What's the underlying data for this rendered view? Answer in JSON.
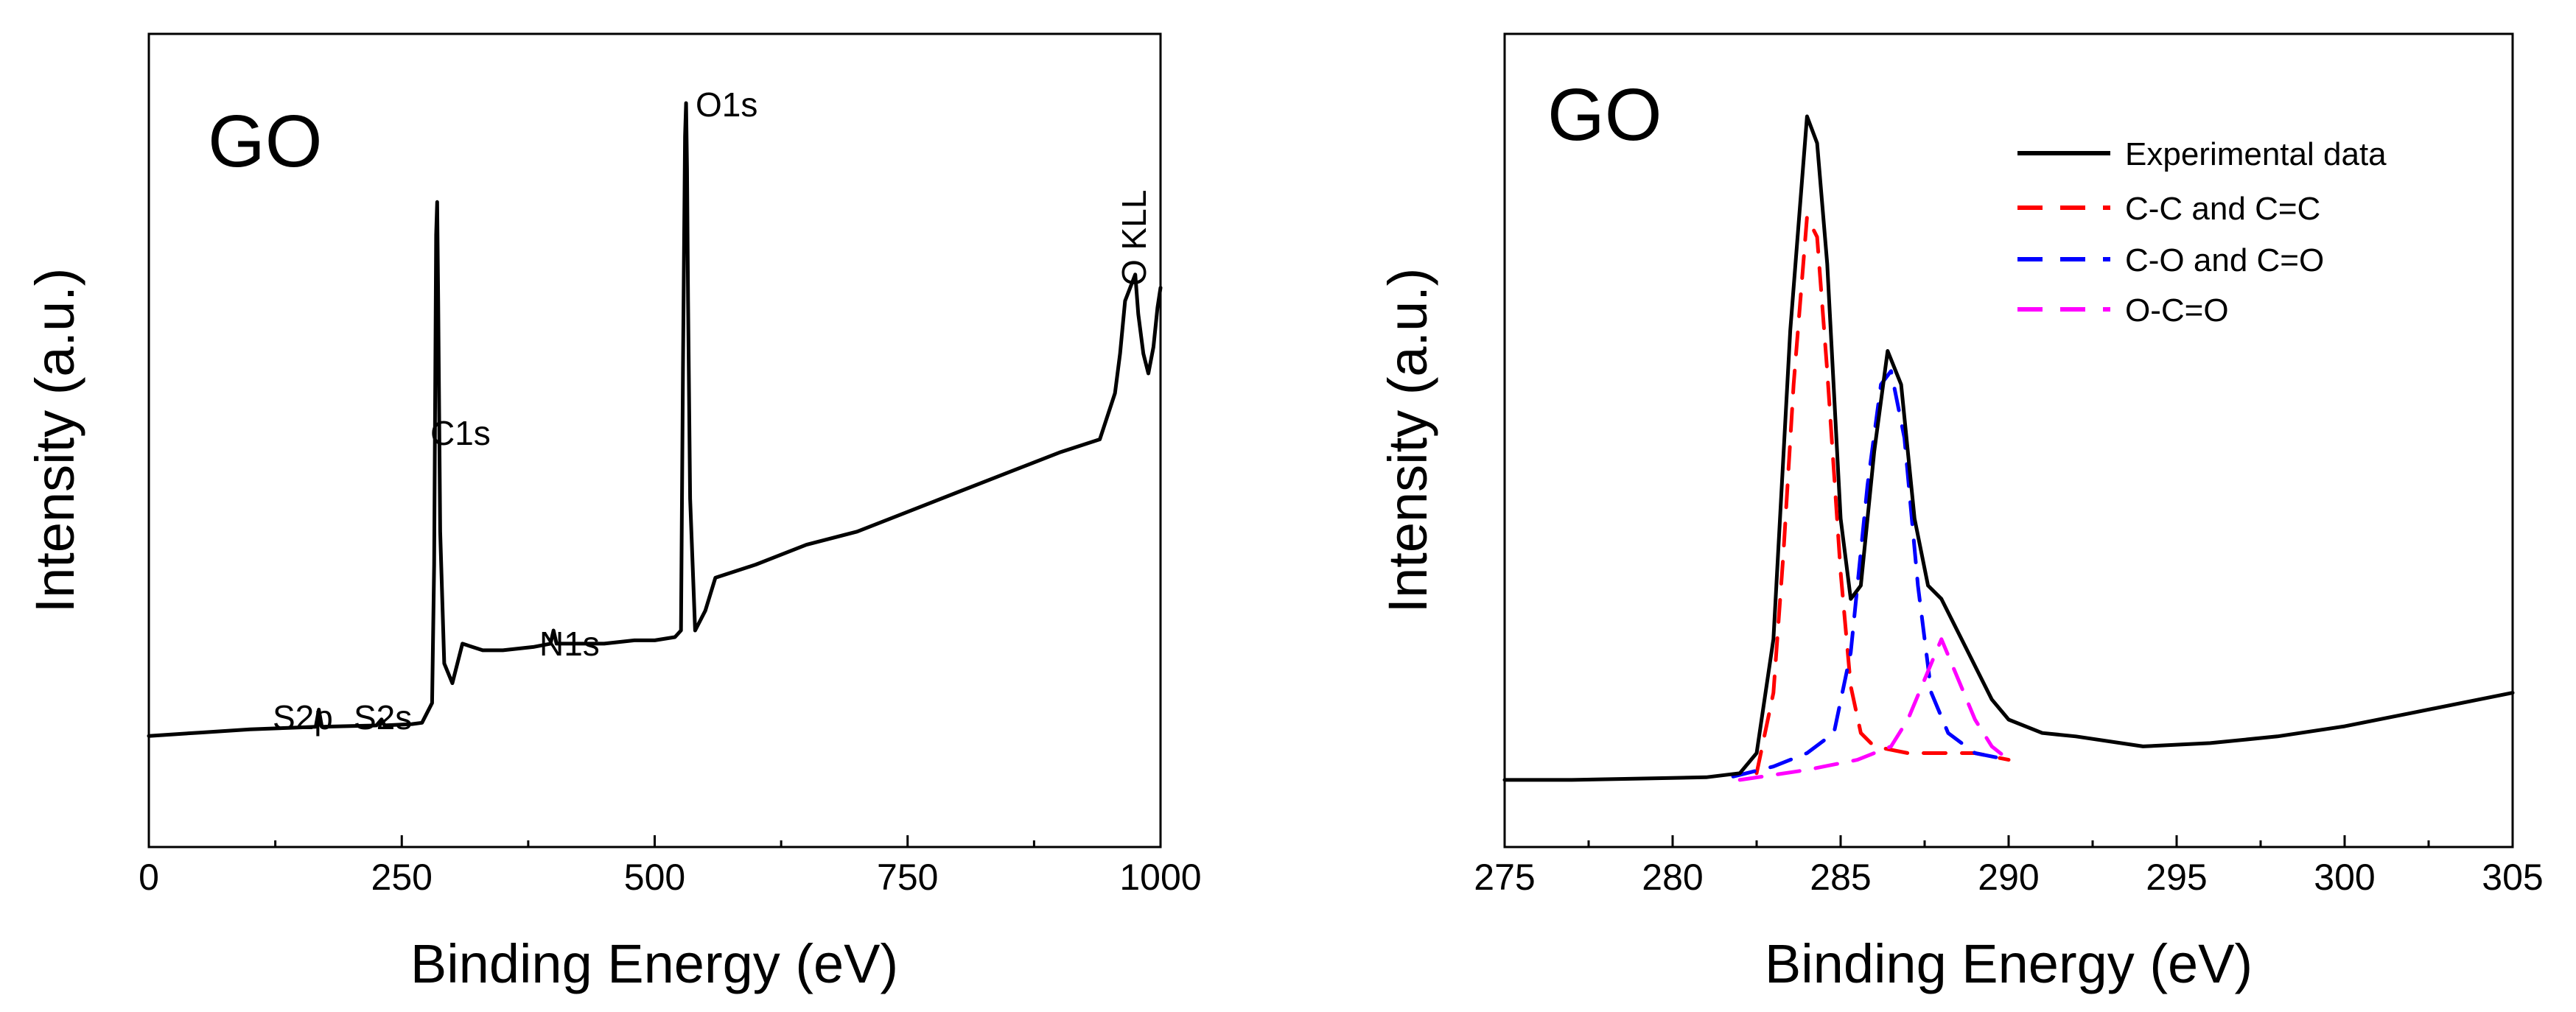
{
  "chart_data": [
    {
      "type": "line",
      "panel_label": "GO",
      "xlabel": "Binding Energy (eV)",
      "ylabel": "Intensity (a.u.)",
      "xlim": [
        0,
        1000
      ],
      "x_ticks": [
        0,
        250,
        500,
        750,
        1000
      ],
      "y_ticks_shown": false,
      "grid": false,
      "y_units": "relative (0-100)",
      "series": [
        {
          "color": "#000000",
          "x": [
            0,
            50,
            100,
            150,
            165,
            168,
            171,
            200,
            225,
            230,
            233,
            260,
            270,
            280,
            282,
            284,
            285,
            286,
            288,
            292,
            300,
            310,
            330,
            350,
            380,
            397,
            400,
            403,
            420,
            450,
            480,
            500,
            520,
            526,
            528,
            530,
            531,
            532,
            533,
            535,
            540,
            550,
            560,
            600,
            650,
            700,
            750,
            800,
            850,
            900,
            940,
            955,
            960,
            965,
            970,
            975,
            978,
            983,
            988,
            993,
            997,
            1000
          ],
          "y": [
            4,
            4.5,
            5,
            5.3,
            5.4,
            8,
            5.4,
            5.5,
            5.6,
            6.5,
            5.6,
            5.8,
            6,
            9,
            30,
            80,
            85,
            70,
            35,
            15,
            12,
            18,
            17,
            17,
            17.5,
            18,
            20,
            18,
            18,
            18,
            18.5,
            18.5,
            19,
            20,
            60,
            95,
            100,
            90,
            70,
            40,
            20,
            23,
            28,
            30,
            33,
            35,
            38,
            41,
            44,
            47,
            49,
            56,
            62,
            70,
            72,
            74,
            68,
            62,
            59,
            63,
            69,
            72
          ]
        }
      ],
      "annotations": [
        "S2p",
        "S2s",
        "C1s",
        "N1s",
        "O1s",
        "O KLL"
      ]
    },
    {
      "type": "line",
      "panel_label": "GO",
      "xlabel": "Binding Energy (eV)",
      "ylabel": "Intensity (a.u.)",
      "xlim": [
        275,
        305
      ],
      "x_ticks": [
        275,
        280,
        285,
        290,
        295,
        300,
        305
      ],
      "y_ticks_shown": false,
      "grid": false,
      "y_units": "relative (0-100)",
      "legend_position": "top-right",
      "series": [
        {
          "name": "Experimental data",
          "color": "#000000",
          "style": "solid",
          "x": [
            275,
            277,
            279,
            281,
            282,
            282.5,
            283,
            283.5,
            284,
            284.3,
            284.6,
            285,
            285.3,
            285.6,
            286,
            286.4,
            286.8,
            287.2,
            287.6,
            288,
            288.5,
            289,
            289.5,
            290,
            291,
            292,
            294,
            296,
            298,
            300,
            302,
            304,
            305
          ],
          "y": [
            1,
            1,
            1.2,
            1.4,
            2,
            5,
            22,
            68,
            100,
            96,
            78,
            40,
            28,
            30,
            50,
            65,
            60,
            40,
            30,
            28,
            23,
            18,
            13,
            10,
            8,
            7.5,
            6,
            6.5,
            7.5,
            9,
            11,
            13,
            14
          ]
        },
        {
          "name": "C-C and C=C",
          "color": "#ff0000",
          "style": "dashed",
          "x": [
            282.5,
            283,
            283.3,
            283.6,
            284,
            284.3,
            284.6,
            285,
            285.3,
            285.6,
            286,
            287,
            288,
            289,
            290
          ],
          "y": [
            2,
            14,
            35,
            60,
            85,
            82,
            62,
            32,
            15,
            8,
            6,
            5,
            5,
            5,
            4
          ]
        },
        {
          "name": "C-O and C=O",
          "color": "#0000ff",
          "style": "dashed",
          "x": [
            281.8,
            283,
            284,
            284.8,
            285.3,
            285.8,
            286.2,
            286.5,
            286.9,
            287.3,
            287.7,
            288.2,
            289,
            290
          ],
          "y": [
            1.5,
            3,
            5,
            8,
            20,
            45,
            60,
            62,
            52,
            30,
            14,
            8,
            5,
            4
          ]
        },
        {
          "name": "O-C=O",
          "color": "#ff00ff",
          "style": "dashed",
          "x": [
            282,
            284,
            285.5,
            286.5,
            287,
            287.5,
            288,
            288.5,
            289,
            289.5,
            290
          ],
          "y": [
            1,
            2.5,
            4,
            6,
            10,
            16,
            22,
            16,
            10,
            6,
            4
          ]
        }
      ]
    }
  ],
  "panels": [
    {
      "title": "GO",
      "xlabel": "Binding Energy (eV)",
      "ylabel": "Intensity (a.u.)",
      "tick_labels": [
        "0",
        "250",
        "500",
        "750",
        "1000"
      ],
      "peak_labels": [
        "S2p",
        "S2s",
        "C1s",
        "N1s",
        "O1s",
        "O KLL"
      ]
    },
    {
      "title": "GO",
      "xlabel": "Binding Energy (eV)",
      "ylabel": "Intensity (a.u.)",
      "tick_labels": [
        "275",
        "280",
        "285",
        "290",
        "295",
        "300",
        "305"
      ],
      "legend": [
        "Experimental data",
        "C-C and C=C",
        "C-O and C=O",
        "O-C=O"
      ]
    }
  ]
}
